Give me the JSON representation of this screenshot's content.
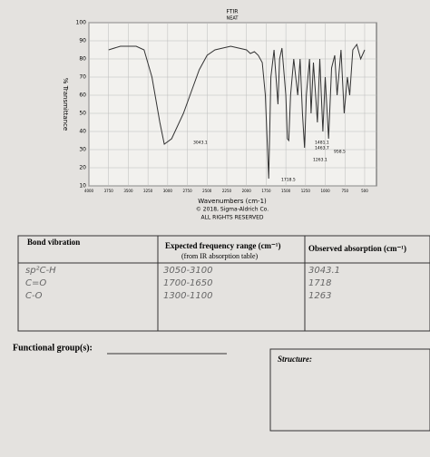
{
  "chart_data": {
    "type": "line",
    "title": "FTIR",
    "subtitle": "NEAT",
    "x_label": "Wavenumbers (cm-1)",
    "y_label": "% Transmittance",
    "credits": [
      "© 2018, Sigma-Aldrich Co.",
      "ALL RIGHTS RESERVED"
    ],
    "xlim": [
      4000,
      350
    ],
    "ylim": [
      10,
      100
    ],
    "xticks": [
      4000,
      3750,
      3500,
      3250,
      3000,
      2750,
      2500,
      2250,
      2000,
      1750,
      1500,
      1250,
      1000,
      750,
      500
    ],
    "yticks": [
      10,
      20,
      30,
      40,
      50,
      60,
      70,
      80,
      90,
      100
    ],
    "grid": true,
    "color": "#333333",
    "x": [
      3750,
      3600,
      3400,
      3300,
      3200,
      3100,
      3043,
      2950,
      2800,
      2700,
      2600,
      2500,
      2400,
      2300,
      2200,
      2100,
      2000,
      1950,
      1900,
      1850,
      1800,
      1760,
      1718,
      1690,
      1650,
      1600,
      1580,
      1550,
      1500,
      1481,
      1463,
      1440,
      1400,
      1350,
      1320,
      1290,
      1263,
      1240,
      1200,
      1180,
      1150,
      1100,
      1070,
      1030,
      1000,
      958,
      920,
      880,
      850,
      800,
      760,
      720,
      690,
      650,
      600,
      550,
      500
    ],
    "values": [
      85,
      87,
      87,
      85,
      70,
      45,
      33,
      36,
      50,
      62,
      74,
      82,
      85,
      86,
      87,
      86,
      85,
      83,
      84,
      82,
      78,
      60,
      14,
      70,
      85,
      55,
      80,
      86,
      60,
      36,
      35,
      60,
      80,
      60,
      80,
      50,
      31,
      60,
      80,
      50,
      78,
      45,
      80,
      40,
      70,
      36,
      75,
      82,
      60,
      85,
      50,
      70,
      60,
      85,
      88,
      80,
      85
    ],
    "annotations": [
      "3043.1",
      "1481.1",
      "1463.7",
      "958.5",
      "1263.1",
      "1718.5"
    ]
  },
  "table": {
    "headers": [
      "Bond vibration",
      "Expected frequency range (cm⁻¹)",
      "Observed absorption (cm⁻¹)"
    ],
    "header_note": "(from IR absorption table)",
    "rows": [
      [
        "sp²C-H",
        "3050-3100",
        "3043.1"
      ],
      [
        "C=O",
        "1700-1650",
        "1718"
      ],
      [
        "C-O",
        "1300-1100",
        "1263"
      ]
    ]
  },
  "functional_groups": {
    "label": "Functional group(s):"
  },
  "structure": {
    "label": "Structure:"
  }
}
